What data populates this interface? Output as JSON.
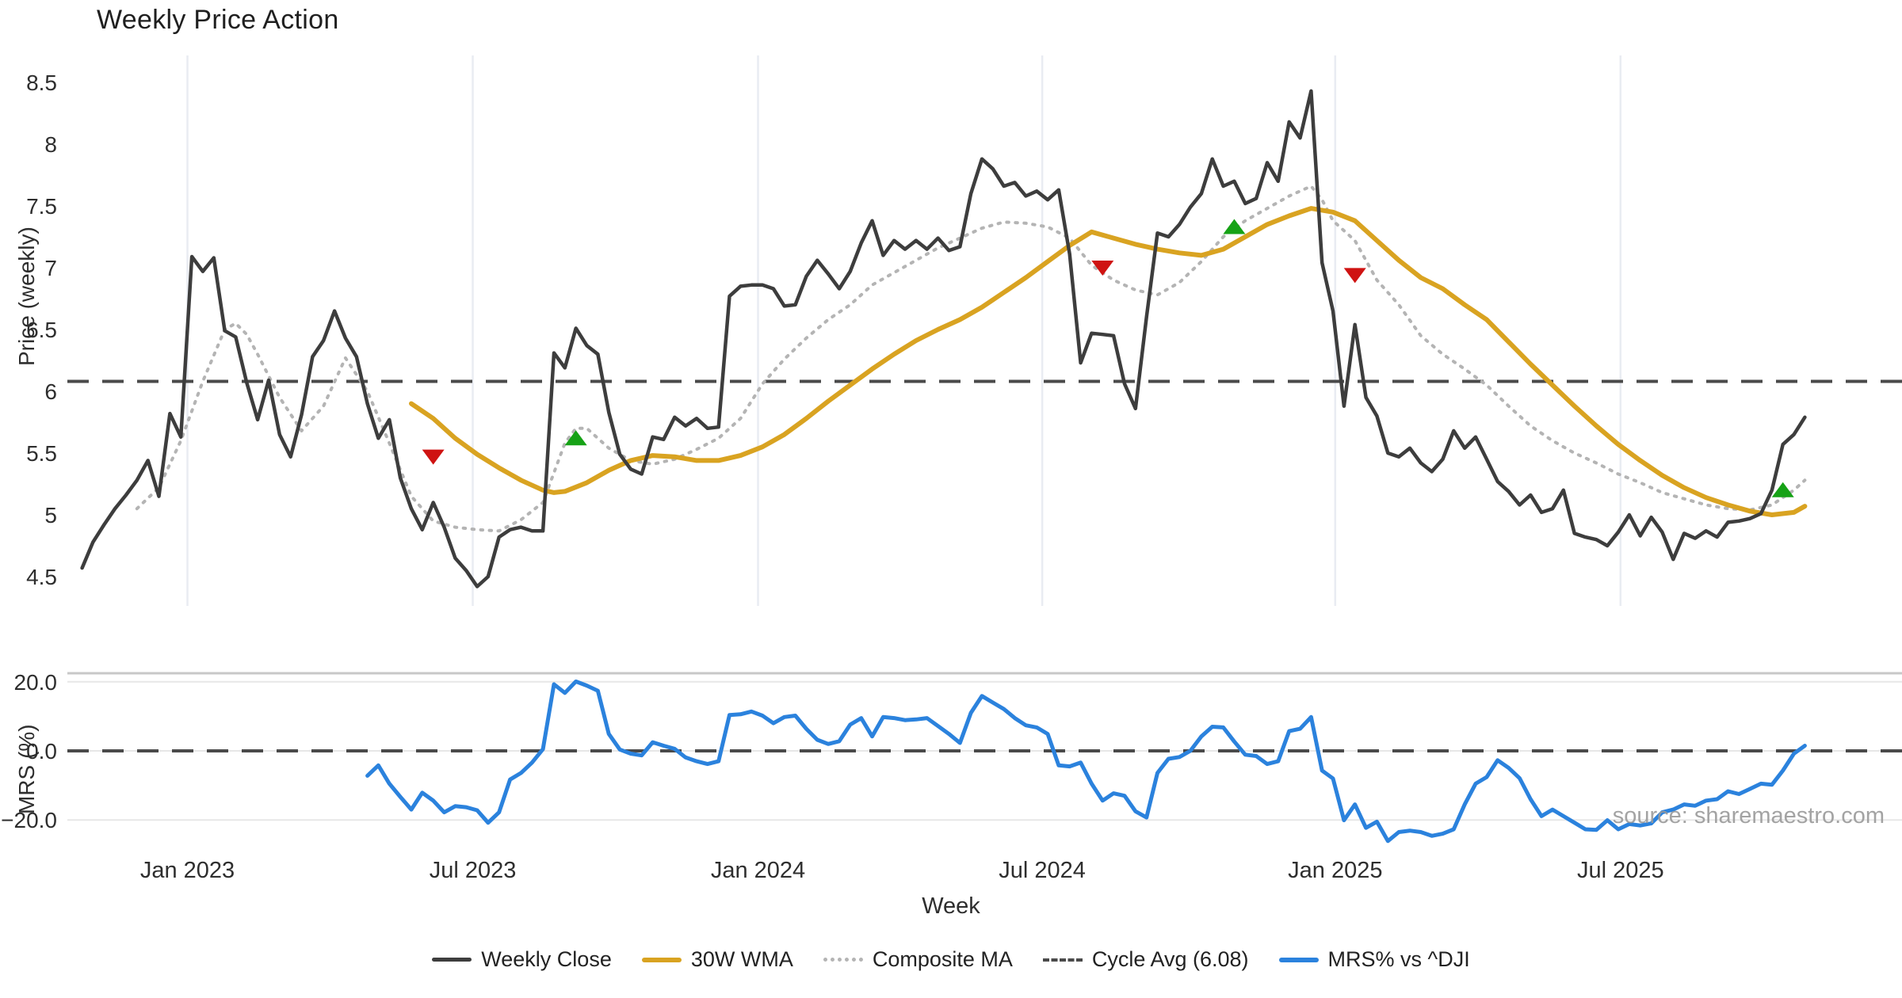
{
  "title": "Weekly Price Action",
  "source_text": "source: sharemaestro.com",
  "legend": {
    "weekly_close": "Weekly Close",
    "wma": "30W WMA",
    "composite": "Composite MA",
    "cycle_avg": "Cycle Avg (6.08)",
    "mrs": "MRS% vs ^DJI"
  },
  "colors": {
    "close": "#3d3d3d",
    "wma": "#d9a321",
    "composite": "#b4b4b4",
    "cycle": "#4a4a4a",
    "mrs": "#2b82dd",
    "buy": "#16a216",
    "sell": "#cf1312",
    "grid_v": "#e9ecf2",
    "grid_h": "#e7e7e7",
    "spine": "#c8c8c8",
    "tick_text": "#2e2e2e"
  },
  "chart_data": {
    "type": "line",
    "title": "Weekly Price Action",
    "xlabel": "Week",
    "x_unit": "weeks since 2022-11-01 (weekly data)",
    "month_ticks": [
      {
        "week": 9.6,
        "label": "Jan 2023"
      },
      {
        "week": 35.6,
        "label": "Jul 2023"
      },
      {
        "week": 61.6,
        "label": "Jan 2024"
      },
      {
        "week": 87.5,
        "label": "Jul 2024"
      },
      {
        "week": 114.2,
        "label": "Jan 2025"
      },
      {
        "week": 140.2,
        "label": "Jul 2025"
      }
    ],
    "panels": [
      {
        "name": "price",
        "ylabel": "Price (weekly)",
        "ylim": [
          4.3,
          8.69
        ],
        "yticks": [
          8.5,
          8,
          7.5,
          7,
          6.5,
          6,
          5.5,
          5,
          4.5
        ],
        "cycle_avg": 6.08,
        "series": [
          {
            "name": "Weekly Close",
            "type": "dense",
            "start_week": 0,
            "values": [
              4.57,
              4.78,
              4.92,
              5.05,
              5.16,
              5.28,
              5.44,
              5.15,
              5.82,
              5.63,
              7.09,
              6.97,
              7.08,
              6.49,
              6.44,
              6.07,
              5.77,
              6.09,
              5.65,
              5.47,
              5.81,
              6.28,
              6.41,
              6.65,
              6.43,
              6.28,
              5.9,
              5.62,
              5.77,
              5.3,
              5.05,
              4.88,
              5.1,
              4.9,
              4.65,
              4.55,
              4.42,
              4.5,
              4.82,
              4.88,
              4.9,
              4.87,
              4.87,
              6.31,
              6.19,
              6.51,
              6.37,
              6.3,
              5.83,
              5.49,
              5.37,
              5.33,
              5.63,
              5.61,
              5.79,
              5.72,
              5.78,
              5.7,
              5.71,
              6.77,
              6.85,
              6.86,
              6.86,
              6.83,
              6.69,
              6.7,
              6.93,
              7.06,
              6.95,
              6.83,
              6.97,
              7.2,
              7.38,
              7.1,
              7.22,
              7.15,
              7.22,
              7.15,
              7.24,
              7.14,
              7.17,
              7.6,
              7.88,
              7.8,
              7.66,
              7.69,
              7.58,
              7.62,
              7.55,
              7.63,
              7.11,
              6.23,
              6.47,
              6.46,
              6.45,
              6.06,
              5.86,
              6.6,
              7.28,
              7.25,
              7.35,
              7.49,
              7.6,
              7.88,
              7.66,
              7.7,
              7.52,
              7.56,
              7.85,
              7.7,
              8.18,
              8.05,
              8.43,
              7.04,
              6.65,
              5.88,
              6.54,
              5.95,
              5.8,
              5.5,
              5.47,
              5.54,
              5.42,
              5.35,
              5.45,
              5.68,
              5.54,
              5.63,
              5.45,
              5.27,
              5.19,
              5.08,
              5.16,
              5.02,
              5.05,
              5.2,
              4.85,
              4.82,
              4.8,
              4.75,
              4.86,
              5.0,
              4.83,
              4.98,
              4.86,
              4.64,
              4.85,
              4.81,
              4.87,
              4.82,
              4.94,
              4.95,
              4.97,
              5.01,
              5.2,
              5.57,
              5.65,
              5.79
            ]
          },
          {
            "name": "30W WMA",
            "type": "anchors",
            "points": [
              [
                30,
                5.9
              ],
              [
                32,
                5.78
              ],
              [
                34,
                5.62
              ],
              [
                36,
                5.49
              ],
              [
                38,
                5.38
              ],
              [
                40,
                5.28
              ],
              [
                42,
                5.2
              ],
              [
                43,
                5.18
              ],
              [
                44,
                5.19
              ],
              [
                46,
                5.26
              ],
              [
                48,
                5.36
              ],
              [
                50,
                5.44
              ],
              [
                52,
                5.48
              ],
              [
                54,
                5.47
              ],
              [
                56,
                5.44
              ],
              [
                58,
                5.44
              ],
              [
                60,
                5.48
              ],
              [
                62,
                5.55
              ],
              [
                64,
                5.65
              ],
              [
                66,
                5.78
              ],
              [
                68,
                5.92
              ],
              [
                70,
                6.05
              ],
              [
                72,
                6.18
              ],
              [
                74,
                6.3
              ],
              [
                76,
                6.41
              ],
              [
                78,
                6.5
              ],
              [
                80,
                6.58
              ],
              [
                82,
                6.68
              ],
              [
                84,
                6.8
              ],
              [
                86,
                6.92
              ],
              [
                88,
                7.05
              ],
              [
                90,
                7.18
              ],
              [
                92,
                7.29
              ],
              [
                94,
                7.24
              ],
              [
                96,
                7.19
              ],
              [
                98,
                7.15
              ],
              [
                100,
                7.12
              ],
              [
                102,
                7.1
              ],
              [
                104,
                7.15
              ],
              [
                106,
                7.25
              ],
              [
                108,
                7.35
              ],
              [
                110,
                7.42
              ],
              [
                112,
                7.48
              ],
              [
                114,
                7.45
              ],
              [
                116,
                7.38
              ],
              [
                118,
                7.22
              ],
              [
                120,
                7.06
              ],
              [
                122,
                6.92
              ],
              [
                124,
                6.83
              ],
              [
                126,
                6.7
              ],
              [
                128,
                6.58
              ],
              [
                130,
                6.4
              ],
              [
                132,
                6.22
              ],
              [
                134,
                6.05
              ],
              [
                136,
                5.88
              ],
              [
                138,
                5.72
              ],
              [
                140,
                5.57
              ],
              [
                142,
                5.44
              ],
              [
                144,
                5.32
              ],
              [
                146,
                5.22
              ],
              [
                148,
                5.14
              ],
              [
                150,
                5.08
              ],
              [
                152,
                5.03
              ],
              [
                154,
                5.0
              ],
              [
                156,
                5.02
              ],
              [
                157,
                5.07
              ]
            ]
          },
          {
            "name": "Composite MA",
            "type": "anchors",
            "points": [
              [
                5,
                5.05
              ],
              [
                7,
                5.22
              ],
              [
                9,
                5.6
              ],
              [
                11,
                6.08
              ],
              [
                13,
                6.5
              ],
              [
                14,
                6.55
              ],
              [
                15,
                6.46
              ],
              [
                16,
                6.3
              ],
              [
                18,
                5.95
              ],
              [
                20,
                5.68
              ],
              [
                22,
                5.88
              ],
              [
                24,
                6.27
              ],
              [
                26,
                6.0
              ],
              [
                28,
                5.58
              ],
              [
                30,
                5.15
              ],
              [
                32,
                4.95
              ],
              [
                34,
                4.9
              ],
              [
                36,
                4.88
              ],
              [
                38,
                4.87
              ],
              [
                40,
                4.96
              ],
              [
                42,
                5.1
              ],
              [
                44,
                5.58
              ],
              [
                45,
                5.7
              ],
              [
                46,
                5.7
              ],
              [
                48,
                5.54
              ],
              [
                50,
                5.44
              ],
              [
                52,
                5.41
              ],
              [
                54,
                5.45
              ],
              [
                56,
                5.53
              ],
              [
                58,
                5.62
              ],
              [
                60,
                5.78
              ],
              [
                62,
                6.06
              ],
              [
                64,
                6.26
              ],
              [
                66,
                6.43
              ],
              [
                68,
                6.58
              ],
              [
                70,
                6.7
              ],
              [
                72,
                6.86
              ],
              [
                74,
                6.96
              ],
              [
                76,
                7.06
              ],
              [
                78,
                7.16
              ],
              [
                80,
                7.24
              ],
              [
                82,
                7.32
              ],
              [
                84,
                7.37
              ],
              [
                86,
                7.36
              ],
              [
                88,
                7.33
              ],
              [
                90,
                7.24
              ],
              [
                92,
                7.02
              ],
              [
                94,
                6.9
              ],
              [
                96,
                6.82
              ],
              [
                98,
                6.78
              ],
              [
                100,
                6.88
              ],
              [
                102,
                7.05
              ],
              [
                104,
                7.25
              ],
              [
                106,
                7.38
              ],
              [
                108,
                7.48
              ],
              [
                110,
                7.58
              ],
              [
                112,
                7.66
              ],
              [
                113,
                7.55
              ],
              [
                114,
                7.38
              ],
              [
                116,
                7.22
              ],
              [
                118,
                6.9
              ],
              [
                120,
                6.7
              ],
              [
                122,
                6.45
              ],
              [
                124,
                6.3
              ],
              [
                126,
                6.18
              ],
              [
                128,
                6.05
              ],
              [
                130,
                5.88
              ],
              [
                132,
                5.72
              ],
              [
                134,
                5.6
              ],
              [
                136,
                5.5
              ],
              [
                138,
                5.42
              ],
              [
                140,
                5.33
              ],
              [
                142,
                5.26
              ],
              [
                144,
                5.18
              ],
              [
                146,
                5.13
              ],
              [
                148,
                5.08
              ],
              [
                150,
                5.05
              ],
              [
                152,
                5.04
              ],
              [
                154,
                5.08
              ],
              [
                156,
                5.2
              ],
              [
                157,
                5.28
              ]
            ]
          }
        ],
        "markers": {
          "sell": [
            [
              32,
              5.47
            ],
            [
              93,
              7.0
            ],
            [
              116,
              6.94
            ]
          ],
          "buy": [
            [
              45,
              5.62
            ],
            [
              105,
              7.33
            ],
            [
              155,
              5.2
            ]
          ]
        }
      },
      {
        "name": "mrs",
        "ylabel": "MRS (%)",
        "ylim": [
          -31,
          22.5
        ],
        "yticks": [
          20.0,
          0.0,
          -20.0
        ],
        "zero_dashed": 0.0,
        "series": [
          {
            "name": "MRS% vs ^DJI",
            "type": "dense",
            "start_week": 26,
            "values": [
              -7.2,
              -4.2,
              -9.5,
              -13.3,
              -17.0,
              -12.1,
              -14.4,
              -17.8,
              -16.0,
              -16.3,
              -17.2,
              -20.8,
              -17.8,
              -8.3,
              -6.4,
              -3.4,
              0.5,
              19.3,
              16.8,
              20.1,
              18.9,
              17.4,
              4.9,
              0.4,
              -0.8,
              -1.3,
              2.5,
              1.5,
              0.6,
              -1.9,
              -3.0,
              -3.8,
              -3.0,
              10.4,
              10.6,
              11.4,
              10.2,
              8.0,
              9.8,
              10.2,
              6.4,
              3.2,
              2.0,
              2.8,
              7.6,
              9.5,
              4.2,
              9.8,
              9.5,
              8.9,
              9.1,
              9.5,
              7.2,
              4.9,
              2.3,
              11.0,
              15.9,
              14.0,
              12.1,
              9.5,
              7.4,
              6.8,
              4.9,
              -4.2,
              -4.5,
              -3.4,
              -9.5,
              -14.4,
              -12.3,
              -13.0,
              -17.5,
              -19.3,
              -6.4,
              -2.3,
              -1.8,
              0.0,
              4.2,
              7.0,
              6.8,
              2.7,
              -1.1,
              -1.5,
              -3.8,
              -3.0,
              5.7,
              6.4,
              9.8,
              -5.7,
              -8.0,
              -20.1,
              -15.5,
              -22.3,
              -20.5,
              -26.1,
              -23.5,
              -23.1,
              -23.5,
              -24.6,
              -24.0,
              -22.7,
              -15.5,
              -9.5,
              -7.6,
              -2.7,
              -4.9,
              -7.9,
              -14.0,
              -18.9,
              -17.0,
              -18.9,
              -20.8,
              -22.7,
              -22.9,
              -20.1,
              -22.7,
              -21.2,
              -21.6,
              -21.0,
              -17.8,
              -17.0,
              -15.5,
              -15.9,
              -14.4,
              -14.0,
              -11.7,
              -12.5,
              -11.0,
              -9.5,
              -9.8,
              -5.7,
              -0.8,
              1.5
            ]
          }
        ]
      }
    ]
  },
  "layout_note_values": {
    "price_tick_labels": [
      "8.5",
      "8",
      "7.5",
      "7",
      "6.5",
      "6",
      "5.5",
      "5",
      "4.5"
    ],
    "mrs_tick_labels": [
      "20.0",
      "0.0",
      "−20.0"
    ]
  }
}
